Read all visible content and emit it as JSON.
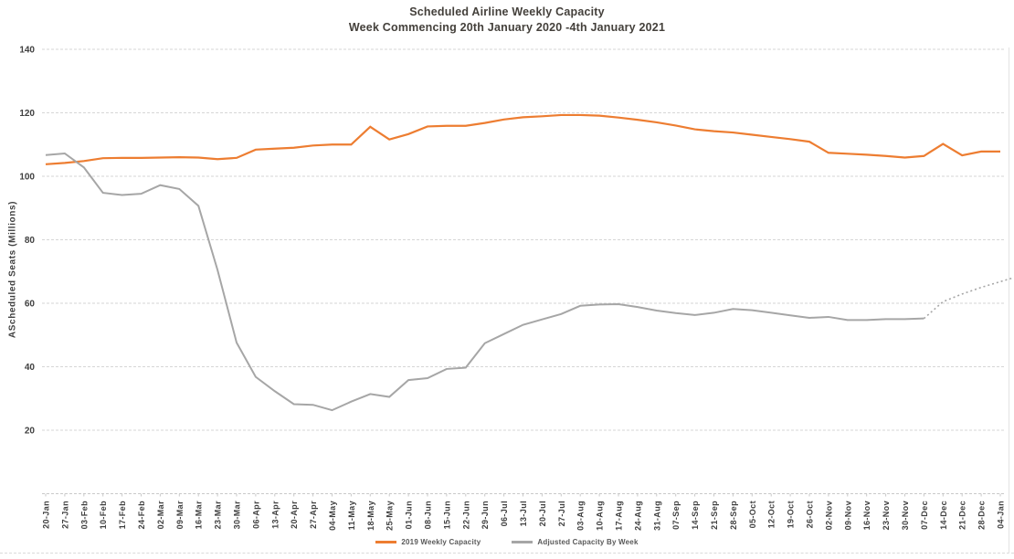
{
  "chart_data": {
    "type": "line",
    "title": "Scheduled Airline Weekly Capacity",
    "subtitle": "Week Commencing 20th January 2020 -4th January 2021",
    "xlabel": "",
    "ylabel": "AScheduled Seats (Millions)",
    "ylim": [
      0,
      140
    ],
    "yticks": [
      20,
      40,
      60,
      80,
      100,
      120,
      140
    ],
    "grid": true,
    "legend_position": "bottom",
    "categories": [
      "20-Jan",
      "27-Jan",
      "03-Feb",
      "10-Feb",
      "17-Feb",
      "24-Feb",
      "02-Mar",
      "09-Mar",
      "16-Mar",
      "23-Mar",
      "30-Mar",
      "06-Apr",
      "13-Apr",
      "20-Apr",
      "27-Apr",
      "04-May",
      "11-May",
      "18-May",
      "25-May",
      "01-Jun",
      "08-Jun",
      "15-Jun",
      "22-Jun",
      "29-Jun",
      "06-Jul",
      "13-Jul",
      "20-Jul",
      "27-Jul",
      "03-Aug",
      "10-Aug",
      "17-Aug",
      "24-Aug",
      "31-Aug",
      "07-Sep",
      "14-Sep",
      "21-Sep",
      "28-Sep",
      "05-Oct",
      "12-Oct",
      "19-Oct",
      "26-Oct",
      "02-Nov",
      "09-Nov",
      "16-Nov",
      "23-Nov",
      "30-Nov",
      "07-Dec",
      "14-Dec",
      "21-Dec",
      "28-Dec",
      "04-Jan"
    ],
    "series": [
      {
        "name": "2019 Weekly Capacity",
        "color": "#ED7D31",
        "style": "solid",
        "values": [
          103.8,
          104.2,
          104.8,
          105.7,
          105.8,
          105.8,
          105.9,
          106.0,
          105.9,
          105.4,
          105.8,
          108.4,
          108.7,
          109.0,
          109.7,
          110.0,
          110.0,
          115.6,
          111.6,
          113.3,
          115.7,
          115.9,
          115.9,
          116.8,
          117.9,
          118.6,
          118.9,
          119.3,
          119.3,
          119.1,
          118.5,
          117.8,
          117.0,
          116.0,
          114.8,
          114.2,
          113.8,
          113.1,
          112.4,
          111.7,
          110.9,
          107.4,
          107.1,
          106.8,
          106.4,
          105.9,
          106.4,
          110.2,
          106.6,
          107.8,
          107.8
        ]
      },
      {
        "name": "Adjusted Capacity By Week",
        "color": "#A6A6A6",
        "style": "solid_then_dotted",
        "dotted_from_index": 46,
        "extends_past_axis": true,
        "values": [
          106.7,
          107.2,
          102.8,
          94.8,
          94.1,
          94.5,
          97.2,
          96.0,
          90.7,
          70.5,
          47.6,
          36.8,
          32.3,
          28.2,
          28.0,
          26.3,
          29.0,
          31.4,
          30.5,
          35.8,
          36.4,
          39.3,
          39.7,
          47.4,
          50.3,
          53.2,
          54.9,
          56.6,
          59.2,
          59.6,
          59.7,
          58.8,
          57.7,
          56.9,
          56.3,
          57.0,
          58.2,
          57.8,
          57.0,
          56.2,
          55.4,
          55.7,
          54.7,
          54.7,
          55.0,
          55.0,
          55.2,
          60.5,
          62.9,
          65.0,
          66.8
        ]
      }
    ]
  }
}
